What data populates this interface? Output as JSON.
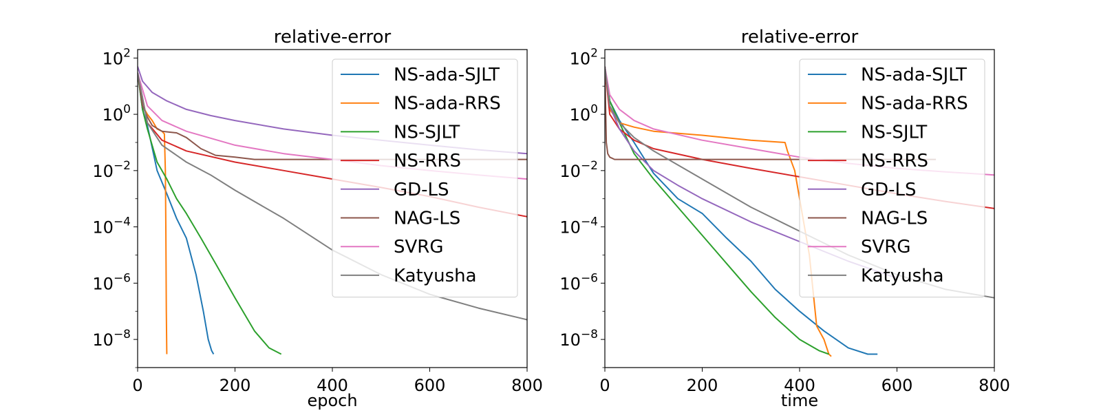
{
  "chart_data": [
    {
      "type": "line",
      "title": "relative-error",
      "xlabel": "epoch",
      "ylabel": "",
      "xlim": [
        0,
        800
      ],
      "ylim": [
        1e-09,
        200
      ],
      "yscale": "log",
      "x_ticks": [
        "0",
        "200",
        "400",
        "600",
        "800"
      ],
      "y_ticks": [
        {
          "base": "10",
          "exp": "2"
        },
        {
          "base": "10",
          "exp": "0"
        },
        {
          "base": "10",
          "exp": "−2"
        },
        {
          "base": "10",
          "exp": "−4"
        },
        {
          "base": "10",
          "exp": "−6"
        },
        {
          "base": "10",
          "exp": "−8"
        }
      ],
      "legend_position": "top-right",
      "series": [
        {
          "name": "NS-ada-SJLT",
          "color": "#1f77b4",
          "x": [
            0,
            10,
            20,
            40,
            60,
            80,
            100,
            120,
            135,
            145,
            152,
            156
          ],
          "y": [
            30,
            1.5,
            0.4,
            0.01,
            0.0015,
            0.0002,
            4e-05,
            2e-06,
            1e-07,
            1e-08,
            4e-09,
            3e-09
          ]
        },
        {
          "name": "NS-ada-RRS",
          "color": "#ff7f0e",
          "x": [
            0,
            10,
            20,
            30,
            40,
            50,
            55,
            57,
            58,
            59,
            60
          ],
          "y": [
            30,
            2,
            1,
            0.6,
            0.3,
            0.25,
            0.2,
            0.01,
            0.0001,
            1e-07,
            3e-09
          ]
        },
        {
          "name": "NS-SJLT",
          "color": "#2ca02c",
          "x": [
            0,
            10,
            20,
            40,
            60,
            80,
            100,
            130,
            160,
            200,
            240,
            270,
            295
          ],
          "y": [
            30,
            1.5,
            0.3,
            0.02,
            0.005,
            0.001,
            0.0003,
            4e-05,
            5e-06,
            3e-07,
            2e-08,
            5e-09,
            3e-09
          ]
        },
        {
          "name": "NS-RRS",
          "color": "#d62728",
          "x": [
            0,
            20,
            50,
            100,
            200,
            300,
            400,
            500,
            600,
            700,
            800
          ],
          "y": [
            30,
            0.5,
            0.12,
            0.05,
            0.02,
            0.01,
            0.005,
            0.0025,
            0.0012,
            0.0005,
            0.00023
          ]
        },
        {
          "name": "GD-LS",
          "color": "#9467bd",
          "x": [
            0,
            10,
            30,
            60,
            100,
            150,
            200,
            300,
            400,
            500,
            600,
            700,
            800
          ],
          "y": [
            50,
            15,
            6,
            3,
            1.5,
            0.9,
            0.6,
            0.3,
            0.18,
            0.12,
            0.08,
            0.055,
            0.04
          ]
        },
        {
          "name": "NAG-LS",
          "color": "#8c564b",
          "x": [
            0,
            10,
            20,
            30,
            50,
            80,
            100,
            130,
            160,
            200,
            240,
            300,
            400,
            500,
            600,
            700,
            800
          ],
          "y": [
            30,
            2,
            0.8,
            0.4,
            0.25,
            0.22,
            0.15,
            0.06,
            0.035,
            0.03,
            0.025,
            0.025,
            0.025,
            0.025,
            0.025,
            0.025,
            0.025
          ]
        },
        {
          "name": "SVRG",
          "color": "#e377c2",
          "x": [
            0,
            20,
            50,
            100,
            200,
            300,
            400,
            500,
            600,
            700,
            800
          ],
          "y": [
            30,
            2,
            0.6,
            0.25,
            0.08,
            0.04,
            0.025,
            0.015,
            0.01,
            0.007,
            0.005
          ]
        },
        {
          "name": "Katyusha",
          "color": "#7f7f7f",
          "x": [
            0,
            20,
            50,
            100,
            150,
            200,
            300,
            400,
            500,
            600,
            700,
            800
          ],
          "y": [
            30,
            0.5,
            0.08,
            0.02,
            0.007,
            0.002,
            0.0002,
            1.5e-05,
            2e-06,
            4e-07,
            1.3e-07,
            5e-08
          ]
        }
      ]
    },
    {
      "type": "line",
      "title": "relative-error",
      "xlabel": "time",
      "ylabel": "",
      "xlim": [
        0,
        800
      ],
      "ylim": [
        1e-09,
        200
      ],
      "yscale": "log",
      "x_ticks": [
        "0",
        "200",
        "400",
        "600",
        "800"
      ],
      "y_ticks": [
        {
          "base": "10",
          "exp": "2"
        },
        {
          "base": "10",
          "exp": "0"
        },
        {
          "base": "10",
          "exp": "−2"
        },
        {
          "base": "10",
          "exp": "−4"
        },
        {
          "base": "10",
          "exp": "−6"
        },
        {
          "base": "10",
          "exp": "−8"
        }
      ],
      "legend_position": "top-right",
      "series": [
        {
          "name": "NS-ada-SJLT",
          "color": "#1f77b4",
          "x": [
            0,
            10,
            30,
            60,
            100,
            150,
            200,
            250,
            300,
            350,
            400,
            450,
            500,
            540,
            560
          ],
          "y": [
            50,
            3,
            0.6,
            0.1,
            0.008,
            0.001,
            0.0003,
            4e-05,
            6e-06,
            6e-07,
            1e-07,
            2e-08,
            5e-09,
            3e-09,
            3e-09
          ]
        },
        {
          "name": "NS-ada-RRS",
          "color": "#ff7f0e",
          "x": [
            0,
            10,
            30,
            60,
            100,
            200,
            300,
            370,
            375,
            390,
            400,
            420,
            435,
            450,
            460,
            465
          ],
          "y": [
            50,
            1.5,
            0.5,
            0.35,
            0.25,
            0.18,
            0.12,
            0.1,
            0.05,
            0.01,
            0.001,
            1e-05,
            3e-08,
            1e-08,
            3e-09,
            2.5e-09
          ]
        },
        {
          "name": "NS-SJLT",
          "color": "#2ca02c",
          "x": [
            0,
            10,
            30,
            60,
            100,
            150,
            200,
            250,
            300,
            350,
            400,
            440,
            460
          ],
          "y": [
            50,
            3,
            0.5,
            0.04,
            0.005,
            0.0005,
            5e-05,
            5e-06,
            5e-07,
            6e-08,
            1e-08,
            4e-09,
            3e-09
          ]
        },
        {
          "name": "NS-RRS",
          "color": "#d62728",
          "x": [
            0,
            10,
            30,
            60,
            100,
            200,
            300,
            400,
            500,
            600,
            700,
            800
          ],
          "y": [
            50,
            1,
            0.3,
            0.12,
            0.06,
            0.025,
            0.012,
            0.006,
            0.003,
            0.0015,
            0.0008,
            0.00045
          ]
        },
        {
          "name": "GD-LS",
          "color": "#9467bd",
          "x": [
            0,
            10,
            30,
            60,
            100,
            150,
            200,
            300,
            400,
            500,
            600
          ],
          "y": [
            50,
            2,
            0.3,
            0.05,
            0.01,
            0.003,
            0.001,
            0.00015,
            3e-05,
            6e-06,
            1.5e-06
          ]
        },
        {
          "name": "NAG-LS",
          "color": "#8c564b",
          "x": [
            0,
            3,
            6,
            10,
            20,
            40,
            100,
            200,
            400,
            600,
            680
          ],
          "y": [
            50,
            0.1,
            0.04,
            0.03,
            0.025,
            0.025,
            0.025,
            0.025,
            0.025,
            0.025,
            0.025
          ]
        },
        {
          "name": "SVRG",
          "color": "#e377c2",
          "x": [
            0,
            10,
            30,
            60,
            100,
            200,
            300,
            400,
            500,
            600,
            700,
            800
          ],
          "y": [
            50,
            5,
            1.5,
            0.6,
            0.3,
            0.12,
            0.06,
            0.03,
            0.018,
            0.012,
            0.009,
            0.007
          ]
        },
        {
          "name": "Katyusha",
          "color": "#7f7f7f",
          "x": [
            0,
            10,
            30,
            60,
            100,
            200,
            300,
            400,
            500,
            600,
            700,
            800
          ],
          "y": [
            50,
            2,
            0.5,
            0.15,
            0.05,
            0.005,
            0.0005,
            7e-05,
            1e-05,
            2e-06,
            6e-07,
            3e-07
          ]
        }
      ]
    }
  ]
}
